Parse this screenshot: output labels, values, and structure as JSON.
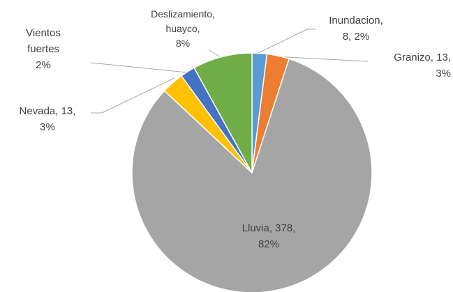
{
  "chart_data": {
    "type": "pie",
    "values": [
      2,
      3,
      82,
      3,
      2,
      8
    ],
    "value_labels": [
      "Inundacion,\n8, 2%",
      "Granizo, 13,\n3%",
      "Lluvia, 378,\n82%",
      "Nevada, 13,\n3%",
      "Vientos\nfuertes\n2%",
      "Deslizamiento,\nhuayco,\n8%"
    ],
    "colors": [
      "#5b9bd5",
      "#ed7d31",
      "#a5a5a5",
      "#ffc000",
      "#4472c4",
      "#70ad47"
    ]
  }
}
